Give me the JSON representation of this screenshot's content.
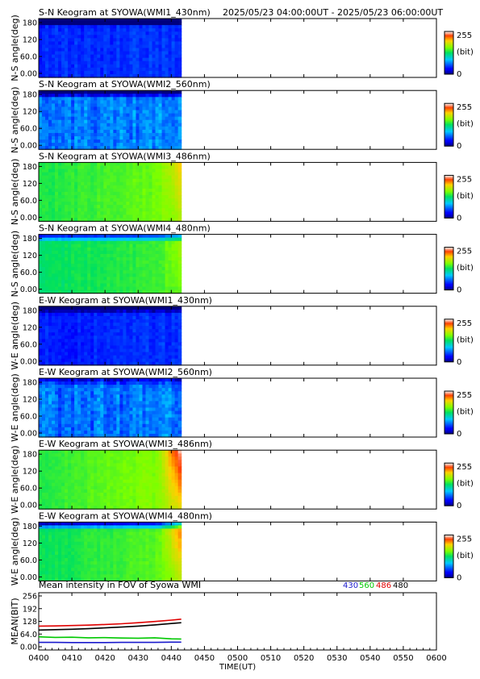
{
  "header": {
    "time_range": "2025/05/23 04:00:00UT - 2025/05/23 06:00:00UT"
  },
  "keogram_panels": [
    {
      "title": "S-N Keogram at SYOWA(WMI1_430nm)",
      "ylabel": "N-S angle(deg)",
      "yticks": [
        "180",
        "120",
        "60.0",
        "0.00"
      ],
      "colorbar": {
        "max": "255",
        "unit": "(bit)",
        "min": "0"
      },
      "colormap_level": 0.15,
      "ramp": 0.03,
      "top_dark": 0.55,
      "speckle": 0.05,
      "edge_bright": 0
    },
    {
      "title": "S-N Keogram at SYOWA(WMI2_560nm)",
      "ylabel": "N-S angle(deg)",
      "yticks": [
        "180",
        "120",
        "60.0",
        "0.00"
      ],
      "colorbar": {
        "max": "255",
        "unit": "(bit)",
        "min": "0"
      },
      "colormap_level": 0.24,
      "ramp": 0.02,
      "top_dark": 0.3,
      "speckle": 0.09,
      "edge_bright": 0
    },
    {
      "title": "S-N Keogram at SYOWA(WMI3_486nm)",
      "ylabel": "N-S angle(deg)",
      "yticks": [
        "180",
        "120",
        "60.0",
        "0.00"
      ],
      "colorbar": {
        "max": "255",
        "unit": "(bit)",
        "min": "0"
      },
      "colormap_level": 0.52,
      "ramp": 0.1,
      "top_dark": 0.0,
      "speckle": 0.03,
      "edge_bright": 0.14
    },
    {
      "title": "S-N Keogram at SYOWA(WMI4_480nm)",
      "ylabel": "N-S angle(deg)",
      "yticks": [
        "180",
        "120",
        "60.0",
        "0.00"
      ],
      "colorbar": {
        "max": "255",
        "unit": "(bit)",
        "min": "0"
      },
      "colormap_level": 0.49,
      "ramp": 0.08,
      "top_dark": 0.35,
      "speckle": 0.03,
      "edge_bright": 0.1
    },
    {
      "title": "E-W Keogram at SYOWA(WMI1_430nm)",
      "ylabel": "W-E angle(deg)",
      "yticks": [
        "180",
        "120",
        "60.0",
        "0.00"
      ],
      "colorbar": {
        "max": "255",
        "unit": "(bit)",
        "min": "0"
      },
      "colormap_level": 0.14,
      "ramp": 0.03,
      "top_dark": 0.2,
      "speckle": 0.05,
      "edge_bright": 0
    },
    {
      "title": "E-W Keogram at SYOWA(WMI2_560nm)",
      "ylabel": "W-E angle(deg)",
      "yticks": [
        "180",
        "120",
        "60.0",
        "0.00"
      ],
      "colorbar": {
        "max": "255",
        "unit": "(bit)",
        "min": "0"
      },
      "colormap_level": 0.23,
      "ramp": 0.02,
      "top_dark": 0.15,
      "speckle": 0.1,
      "edge_bright": 0
    },
    {
      "title": "E-W Keogram at SYOWA(WMI3_486nm)",
      "ylabel": "W-E angle(deg)",
      "yticks": [
        "180",
        "120",
        "60.0",
        "0.00"
      ],
      "colorbar": {
        "max": "255",
        "unit": "(bit)",
        "min": "0"
      },
      "colormap_level": 0.53,
      "ramp": 0.12,
      "top_dark": 0.0,
      "speckle": 0.03,
      "edge_bright": 0.3
    },
    {
      "title": "E-W Keogram at SYOWA(WMI4_480nm)",
      "ylabel": "W-E angle(deg)",
      "yticks": [
        "180",
        "120",
        "60.0",
        "0.00"
      ],
      "colorbar": {
        "max": "255",
        "unit": "(bit)",
        "min": "0"
      },
      "colormap_level": 0.5,
      "ramp": 0.1,
      "top_dark": 0.45,
      "speckle": 0.03,
      "edge_bright": 0.25
    }
  ],
  "data_end_time": "04:43",
  "mean_panel": {
    "title": "Mean intensity in FOV of Syowa WMI",
    "ylabel": "MEAN(BIT)",
    "yticks": [
      "256",
      "192",
      "128",
      "64.0",
      "0.00"
    ],
    "legend": [
      {
        "name": "430",
        "color": "#1a1acc"
      },
      {
        "name": "560",
        "color": "#00c800"
      },
      {
        "name": "486",
        "color": "#e00000"
      },
      {
        "name": "480",
        "color": "#000000"
      }
    ]
  },
  "x_axis": {
    "label": "TIME(UT)",
    "ticks": [
      "0400",
      "0410",
      "0420",
      "0430",
      "0440",
      "0450",
      "0500",
      "0510",
      "0520",
      "0530",
      "0540",
      "0550",
      "0600"
    ]
  },
  "chart_data": {
    "type": "line",
    "title": "Mean intensity in FOV of Syowa WMI",
    "xlabel": "TIME(UT)",
    "ylabel": "MEAN(BIT)",
    "xlim": [
      "04:00",
      "06:00"
    ],
    "ylim": [
      0,
      256
    ],
    "x": [
      "04:00",
      "04:05",
      "04:10",
      "04:15",
      "04:20",
      "04:25",
      "04:30",
      "04:35",
      "04:40",
      "04:43"
    ],
    "series": [
      {
        "name": "430",
        "color": "#1a1acc",
        "values": [
          22,
          22,
          21,
          21,
          21,
          22,
          22,
          22,
          23,
          23
        ]
      },
      {
        "name": "560",
        "color": "#00c800",
        "values": [
          50,
          47,
          48,
          45,
          46,
          44,
          43,
          45,
          40,
          39
        ]
      },
      {
        "name": "486",
        "color": "#e00000",
        "values": [
          104,
          105,
          107,
          109,
          112,
          116,
          121,
          127,
          134,
          139
        ]
      },
      {
        "name": "480",
        "color": "#000000",
        "values": [
          84,
          86,
          88,
          91,
          95,
          99,
          104,
          110,
          117,
          121
        ]
      }
    ]
  }
}
